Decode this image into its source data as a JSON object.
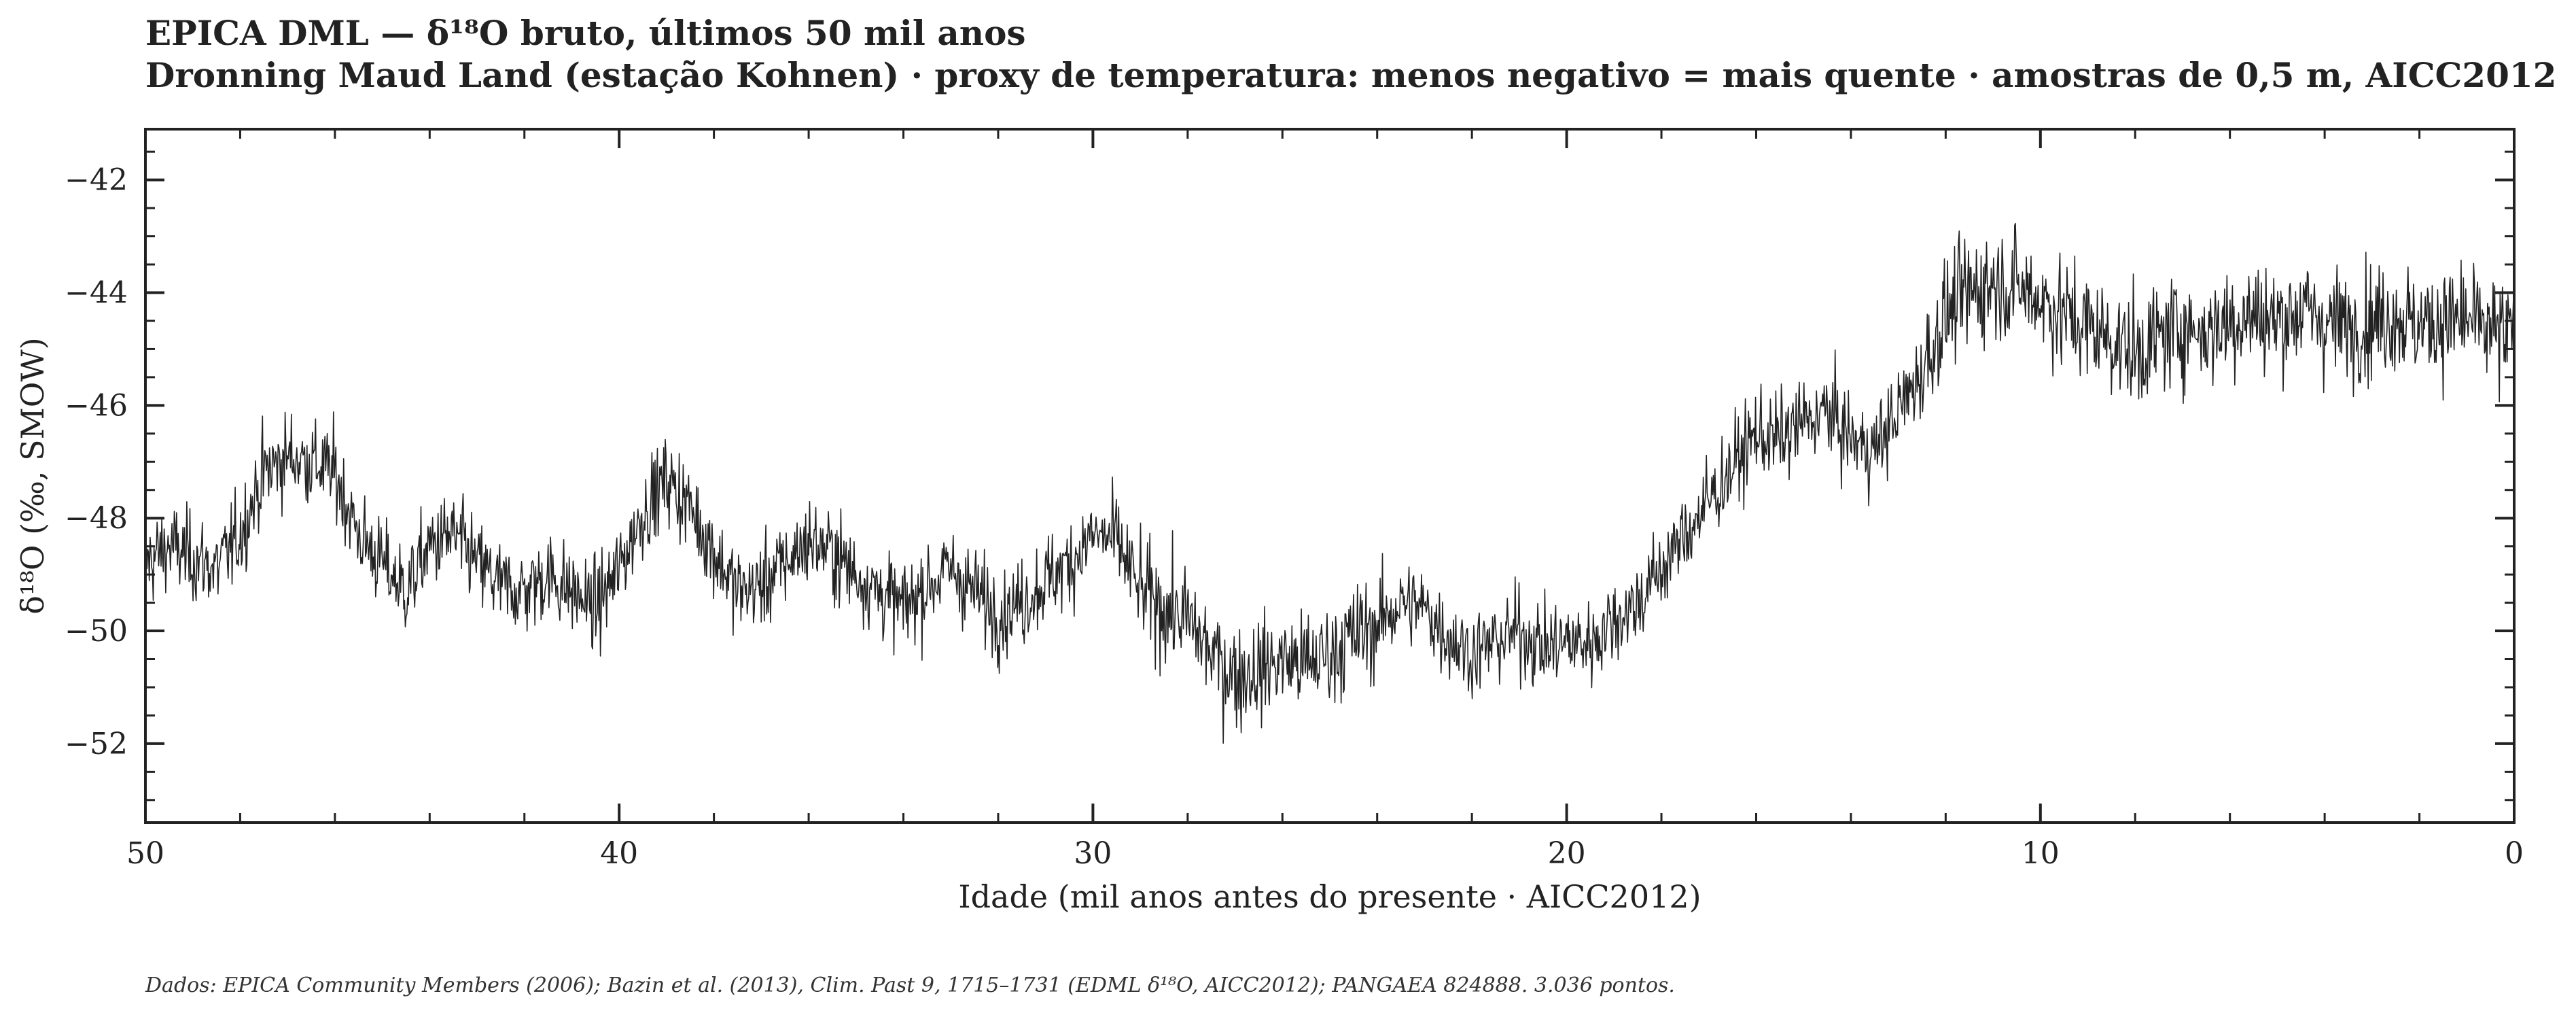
{
  "chart_data": {
    "type": "line",
    "title": "EPICA DML — δ¹⁸O bruto, últimos 50 mil anos",
    "subtitle": "Dronning Maud Land (estação Kohnen) · proxy de temperatura: menos negativo = mais quente · amostras de 0,5 m, AICC2012",
    "xlabel": "Idade (mil anos antes do presente · AICC2012)",
    "ylabel": "δ¹⁸O (‰, SMOW)",
    "source": "Dados: EPICA Community Members (2006); Bazin et al. (2013), Clim. Past 9, 1715–1731 (EDML δ¹⁸O, AICC2012); PANGAEA 824888. 3.036 pontos.",
    "xlim": [
      50,
      0
    ],
    "ylim": [
      -53.4,
      -41.1
    ],
    "x_reversed": true,
    "xticks": [
      50,
      40,
      30,
      20,
      10,
      0
    ],
    "xtick_labels": [
      "50",
      "40",
      "30",
      "20",
      "10",
      "0"
    ],
    "yticks": [
      -42,
      -44,
      -46,
      -48,
      -50,
      -52
    ],
    "ytick_labels": [
      "−42",
      "−44",
      "−46",
      "−48",
      "−50",
      "−52"
    ],
    "grid": false,
    "line_color": "#222222",
    "series": [
      {
        "x": [
          50,
          49.5,
          49,
          48.5,
          48,
          47.5,
          47,
          46.5,
          46,
          45.5,
          45,
          44.5,
          44,
          43.5,
          43,
          42.5,
          42,
          41.5,
          41,
          40.5,
          40,
          39.5,
          39,
          38.5,
          38,
          37.5,
          37,
          36.5,
          36,
          35.5,
          35,
          34.5,
          34,
          33.5,
          33,
          32.5,
          32,
          31.5,
          31,
          30.5,
          30,
          29.5,
          29,
          28.5,
          28,
          27.5,
          27,
          26.5,
          26,
          25.5,
          25,
          24.5,
          24,
          23.5,
          23,
          22.5,
          22,
          21.5,
          21,
          20.5,
          20,
          19.5,
          19,
          18.5,
          18,
          17.5,
          17,
          16.5,
          16,
          15.5,
          15,
          14.5,
          14,
          13.5,
          13,
          12.5,
          12,
          11.5,
          11,
          10.5,
          10,
          9.5,
          9,
          8.5,
          8,
          7.5,
          7,
          6.5,
          6,
          5.5,
          5,
          4.5,
          4,
          3.5,
          3,
          2.5,
          2,
          1.5,
          1,
          0.5,
          0
        ],
        "values": [
          -48.8,
          -48.5,
          -48.7,
          -48.9,
          -48.3,
          -47.2,
          -46.9,
          -47.0,
          -47.2,
          -48.3,
          -48.8,
          -49.3,
          -48.5,
          -48.3,
          -48.8,
          -49.2,
          -49.3,
          -49.0,
          -49.3,
          -49.6,
          -48.9,
          -47.9,
          -47.3,
          -47.8,
          -48.6,
          -49.3,
          -49.2,
          -48.8,
          -48.4,
          -48.6,
          -49.0,
          -49.3,
          -49.6,
          -49.2,
          -48.9,
          -49.3,
          -49.7,
          -49.5,
          -49.1,
          -48.8,
          -48.3,
          -48.4,
          -49.3,
          -49.6,
          -49.8,
          -50.4,
          -50.8,
          -50.7,
          -50.5,
          -50.6,
          -50.4,
          -50.1,
          -49.9,
          -49.5,
          -49.6,
          -50.1,
          -50.4,
          -50.2,
          -50.0,
          -50.3,
          -50.2,
          -50.2,
          -49.8,
          -49.5,
          -48.9,
          -48.3,
          -47.7,
          -47.1,
          -46.5,
          -46.6,
          -46.3,
          -46.1,
          -46.6,
          -46.8,
          -46.1,
          -45.4,
          -44.4,
          -44.0,
          -43.8,
          -43.9,
          -44.1,
          -44.4,
          -44.6,
          -44.8,
          -45.1,
          -44.8,
          -44.6,
          -44.7,
          -44.5,
          -44.4,
          -44.5,
          -44.3,
          -44.5,
          -44.6,
          -44.5,
          -44.4,
          -44.6,
          -44.5,
          -44.5,
          -44.7,
          -44.8
        ]
      }
    ]
  }
}
